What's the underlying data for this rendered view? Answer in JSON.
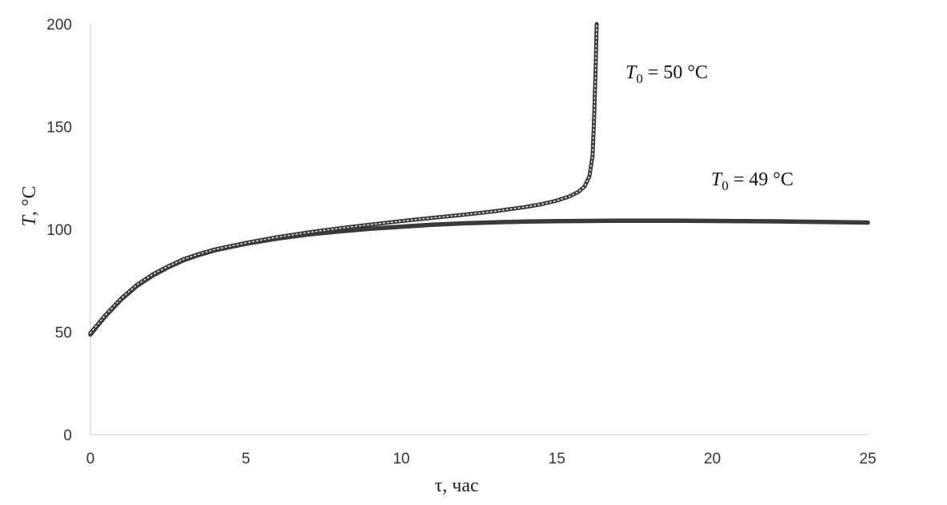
{
  "chart_data": {
    "type": "line",
    "xlabel": "τ, час",
    "ylabel": {
      "symbol": "T",
      "unit": ", °C"
    },
    "xlim": [
      0,
      25
    ],
    "ylim": [
      0,
      200
    ],
    "xticks": [
      "0",
      "5",
      "10",
      "15",
      "20",
      "25"
    ],
    "yticks": [
      "0",
      "50",
      "100",
      "150",
      "200"
    ],
    "grid": false,
    "legend": "none",
    "series": [
      {
        "name": "T0 = 50 °C",
        "label": {
          "symbol": "T",
          "sub": "0",
          "rest": " = 50 °C"
        },
        "color": "#3a3a3a",
        "style": "beaded",
        "points": [
          [
            0,
            49.5
          ],
          [
            0.25,
            54
          ],
          [
            0.5,
            58.5
          ],
          [
            1,
            66.5
          ],
          [
            1.5,
            73
          ],
          [
            2,
            78
          ],
          [
            2.5,
            82
          ],
          [
            3,
            85.5
          ],
          [
            3.5,
            88
          ],
          [
            4,
            90.2
          ],
          [
            5,
            93.4
          ],
          [
            6,
            96.2
          ],
          [
            7,
            98.5
          ],
          [
            8,
            100.5
          ],
          [
            9,
            102.3
          ],
          [
            10,
            104
          ],
          [
            11,
            105.6
          ],
          [
            12,
            107.1
          ],
          [
            13,
            108.8
          ],
          [
            14,
            110.9
          ],
          [
            14.5,
            112.2
          ],
          [
            15,
            114
          ],
          [
            15.4,
            116
          ],
          [
            15.7,
            118.3
          ],
          [
            15.9,
            121
          ],
          [
            16.05,
            126
          ],
          [
            16.15,
            136
          ],
          [
            16.2,
            155
          ],
          [
            16.25,
            180
          ],
          [
            16.28,
            200
          ]
        ]
      },
      {
        "name": "T0 = 49 °C",
        "label": {
          "symbol": "T",
          "sub": "0",
          "rest": " = 49 °C"
        },
        "color": "#3a3a3a",
        "style": "solid",
        "points": [
          [
            0,
            48.8
          ],
          [
            0.25,
            53.5
          ],
          [
            0.5,
            58
          ],
          [
            1,
            66
          ],
          [
            1.5,
            72.5
          ],
          [
            2,
            77.5
          ],
          [
            2.5,
            81.5
          ],
          [
            3,
            85
          ],
          [
            3.5,
            87.6
          ],
          [
            4,
            89.8
          ],
          [
            5,
            93
          ],
          [
            6,
            95.5
          ],
          [
            7,
            97.5
          ],
          [
            8,
            99
          ],
          [
            9,
            100.3
          ],
          [
            10,
            101.3
          ],
          [
            11,
            102.2
          ],
          [
            12,
            102.9
          ],
          [
            13,
            103.4
          ],
          [
            14,
            103.8
          ],
          [
            15,
            104
          ],
          [
            16,
            104.1
          ],
          [
            17,
            104.2
          ],
          [
            18,
            104.2
          ],
          [
            19,
            104.2
          ],
          [
            20,
            104.1
          ],
          [
            21,
            104
          ],
          [
            22,
            103.9
          ],
          [
            23,
            103.7
          ],
          [
            24,
            103.5
          ],
          [
            25,
            103.3
          ]
        ]
      }
    ]
  }
}
